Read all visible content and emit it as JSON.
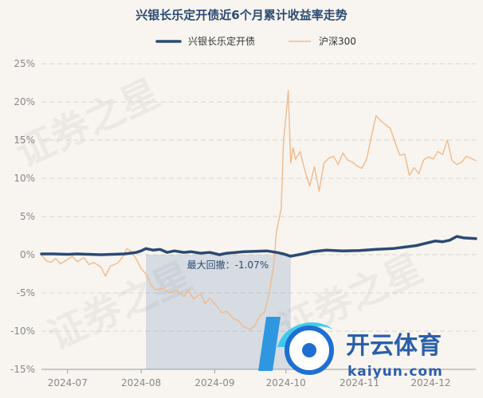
{
  "chart_data": {
    "type": "line",
    "title": "兴银长乐定开债近6个月累计收益率走势",
    "xlabel": "",
    "ylabel": "",
    "x_range": [
      "2024-06-20",
      "2024-12-20"
    ],
    "ylim": [
      -15,
      25
    ],
    "y_ticks": [
      25,
      20,
      15,
      10,
      5,
      0,
      -5,
      -10,
      -15
    ],
    "y_tick_labels": [
      "25%",
      "20%",
      "15%",
      "10%",
      "5%",
      "0%",
      "-5%",
      "-10%",
      "-15%"
    ],
    "x_ticks": [
      {
        "date": "2024-07-01",
        "label": "2024-07"
      },
      {
        "date": "2024-08-01",
        "label": "2024-08"
      },
      {
        "date": "2024-09-01",
        "label": "2024-09"
      },
      {
        "date": "2024-10-01",
        "label": "2024-10"
      },
      {
        "date": "2024-11-01",
        "label": "2024-11"
      },
      {
        "date": "2024-12-01",
        "label": "2024-12"
      }
    ],
    "grid": true,
    "legend_position": "top-center",
    "series": [
      {
        "name": "兴银长乐定开债",
        "color": "#2b4a73",
        "points": [
          [
            "2024-06-20",
            0.1
          ],
          [
            "2024-06-25",
            0.1
          ],
          [
            "2024-07-01",
            0.05
          ],
          [
            "2024-07-05",
            0.1
          ],
          [
            "2024-07-10",
            0.05
          ],
          [
            "2024-07-15",
            0.0
          ],
          [
            "2024-07-20",
            0.05
          ],
          [
            "2024-07-25",
            0.1
          ],
          [
            "2024-07-30",
            0.3
          ],
          [
            "2024-08-01",
            0.5
          ],
          [
            "2024-08-03",
            0.8
          ],
          [
            "2024-08-06",
            0.6
          ],
          [
            "2024-08-09",
            0.7
          ],
          [
            "2024-08-12",
            0.3
          ],
          [
            "2024-08-15",
            0.5
          ],
          [
            "2024-08-19",
            0.3
          ],
          [
            "2024-08-22",
            0.4
          ],
          [
            "2024-08-26",
            0.2
          ],
          [
            "2024-08-30",
            0.3
          ],
          [
            "2024-09-03",
            0.0
          ],
          [
            "2024-09-06",
            0.2
          ],
          [
            "2024-09-10",
            0.3
          ],
          [
            "2024-09-13",
            0.4
          ],
          [
            "2024-09-18",
            0.45
          ],
          [
            "2024-09-23",
            0.5
          ],
          [
            "2024-09-27",
            0.3
          ],
          [
            "2024-09-30",
            0.1
          ],
          [
            "2024-10-03",
            -0.2
          ],
          [
            "2024-10-08",
            0.1
          ],
          [
            "2024-10-12",
            0.4
          ],
          [
            "2024-10-18",
            0.6
          ],
          [
            "2024-10-25",
            0.5
          ],
          [
            "2024-11-01",
            0.55
          ],
          [
            "2024-11-08",
            0.7
          ],
          [
            "2024-11-15",
            0.8
          ],
          [
            "2024-11-20",
            1.0
          ],
          [
            "2024-11-25",
            1.2
          ],
          [
            "2024-11-29",
            1.5
          ],
          [
            "2024-12-03",
            1.8
          ],
          [
            "2024-12-06",
            1.7
          ],
          [
            "2024-12-09",
            1.9
          ],
          [
            "2024-12-12",
            2.4
          ],
          [
            "2024-12-15",
            2.2
          ],
          [
            "2024-12-20",
            2.1
          ]
        ]
      },
      {
        "name": "沪深300",
        "color": "#f2b98a",
        "points": [
          [
            "2024-06-20",
            0.0
          ],
          [
            "2024-06-22",
            -0.8
          ],
          [
            "2024-06-24",
            -1.0
          ],
          [
            "2024-06-26",
            -0.5
          ],
          [
            "2024-06-28",
            -1.2
          ],
          [
            "2024-07-01",
            -0.6
          ],
          [
            "2024-07-03",
            -0.2
          ],
          [
            "2024-07-05",
            -0.9
          ],
          [
            "2024-07-08",
            -0.4
          ],
          [
            "2024-07-10",
            -1.3
          ],
          [
            "2024-07-12",
            -1.0
          ],
          [
            "2024-07-15",
            -1.6
          ],
          [
            "2024-07-17",
            -2.8
          ],
          [
            "2024-07-19",
            -1.5
          ],
          [
            "2024-07-22",
            -1.1
          ],
          [
            "2024-07-24",
            -0.4
          ],
          [
            "2024-07-26",
            0.8
          ],
          [
            "2024-07-28",
            0.4
          ],
          [
            "2024-07-30",
            -0.6
          ],
          [
            "2024-08-01",
            -1.8
          ],
          [
            "2024-08-03",
            -2.5
          ],
          [
            "2024-08-05",
            -3.9
          ],
          [
            "2024-08-07",
            -4.6
          ],
          [
            "2024-08-10",
            -4.4
          ],
          [
            "2024-08-13",
            -5.0
          ],
          [
            "2024-08-16",
            -4.6
          ],
          [
            "2024-08-19",
            -5.5
          ],
          [
            "2024-08-21",
            -4.6
          ],
          [
            "2024-08-23",
            -5.8
          ],
          [
            "2024-08-26",
            -5.1
          ],
          [
            "2024-08-28",
            -6.4
          ],
          [
            "2024-08-30",
            -5.7
          ],
          [
            "2024-09-02",
            -6.8
          ],
          [
            "2024-09-04",
            -7.6
          ],
          [
            "2024-09-06",
            -7.4
          ],
          [
            "2024-09-09",
            -8.4
          ],
          [
            "2024-09-11",
            -8.6
          ],
          [
            "2024-09-13",
            -9.4
          ],
          [
            "2024-09-16",
            -9.8
          ],
          [
            "2024-09-18",
            -9.2
          ],
          [
            "2024-09-20",
            -8.0
          ],
          [
            "2024-09-22",
            -7.5
          ],
          [
            "2024-09-24",
            -5.0
          ],
          [
            "2024-09-26",
            -1.0
          ],
          [
            "2024-09-27",
            3.0
          ],
          [
            "2024-09-29",
            6.0
          ],
          [
            "2024-09-30",
            15.0
          ],
          [
            "2024-10-01",
            18.0
          ],
          [
            "2024-10-02",
            21.5
          ],
          [
            "2024-10-03",
            12.0
          ],
          [
            "2024-10-04",
            14.0
          ],
          [
            "2024-10-05",
            12.5
          ],
          [
            "2024-10-07",
            13.5
          ],
          [
            "2024-10-09",
            11.0
          ],
          [
            "2024-10-11",
            9.0
          ],
          [
            "2024-10-13",
            11.5
          ],
          [
            "2024-10-15",
            8.3
          ],
          [
            "2024-10-17",
            12.0
          ],
          [
            "2024-10-19",
            12.6
          ],
          [
            "2024-10-21",
            12.9
          ],
          [
            "2024-10-23",
            11.8
          ],
          [
            "2024-10-25",
            13.3
          ],
          [
            "2024-10-27",
            12.4
          ],
          [
            "2024-10-29",
            12.1
          ],
          [
            "2024-10-31",
            11.6
          ],
          [
            "2024-11-02",
            11.3
          ],
          [
            "2024-11-04",
            12.5
          ],
          [
            "2024-11-06",
            15.5
          ],
          [
            "2024-11-08",
            18.2
          ],
          [
            "2024-11-10",
            17.5
          ],
          [
            "2024-11-12",
            17.0
          ],
          [
            "2024-11-14",
            16.5
          ],
          [
            "2024-11-16",
            14.7
          ],
          [
            "2024-11-18",
            13.0
          ],
          [
            "2024-11-20",
            13.2
          ],
          [
            "2024-11-22",
            10.4
          ],
          [
            "2024-11-24",
            11.4
          ],
          [
            "2024-11-26",
            10.6
          ],
          [
            "2024-11-28",
            12.4
          ],
          [
            "2024-11-30",
            12.8
          ],
          [
            "2024-12-02",
            12.5
          ],
          [
            "2024-12-04",
            13.5
          ],
          [
            "2024-12-06",
            13.1
          ],
          [
            "2024-12-08",
            15.0
          ],
          [
            "2024-12-10",
            12.3
          ],
          [
            "2024-12-12",
            11.8
          ],
          [
            "2024-12-14",
            12.1
          ],
          [
            "2024-12-16",
            12.9
          ],
          [
            "2024-12-18",
            12.6
          ],
          [
            "2024-12-20",
            12.3
          ]
        ]
      }
    ],
    "max_drawdown": {
      "label": "最大回撤：-1.07%",
      "start": "2024-08-03",
      "end": "2024-10-03",
      "color": "#7f9cbf"
    }
  },
  "watermark": {
    "text": "证券之星",
    "logo_main": "开云体育",
    "logo_sub": "kaiyun.com"
  }
}
